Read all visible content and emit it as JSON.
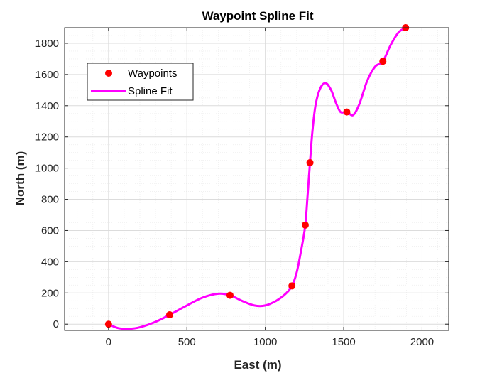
{
  "chart_data": {
    "type": "line",
    "title": "Waypoint Spline Fit",
    "xlabel": "East (m)",
    "ylabel": "North (m)",
    "xlim": [
      -280,
      2170
    ],
    "ylim": [
      -40,
      1900
    ],
    "xticks": [
      0,
      500,
      1000,
      1500,
      2000
    ],
    "yticks": [
      0,
      200,
      400,
      600,
      800,
      1000,
      1200,
      1400,
      1600,
      1800
    ],
    "grid": true,
    "minor_grid": true,
    "legend_location": "top-left",
    "series": [
      {
        "name": "Waypoints",
        "kind": "scatter",
        "color": "#ff0000",
        "x": [
          0,
          390,
          775,
          1170,
          1255,
          1285,
          1520,
          1750,
          1895
        ],
        "y": [
          0,
          60,
          185,
          245,
          635,
          1035,
          1360,
          1685,
          1900
        ]
      },
      {
        "name": "Spline Fit",
        "kind": "line",
        "color": "#ff00ff",
        "x": [
          0,
          60,
          130,
          200,
          300,
          390,
          500,
          600,
          700,
          775,
          850,
          930,
          1000,
          1070,
          1130,
          1170,
          1200,
          1230,
          1255,
          1270,
          1285,
          1300,
          1320,
          1350,
          1385,
          1420,
          1450,
          1480,
          1520,
          1560,
          1600,
          1650,
          1700,
          1750,
          1800,
          1850,
          1895
        ],
        "y": [
          0,
          -25,
          -30,
          -20,
          15,
          60,
          120,
          170,
          195,
          185,
          150,
          120,
          120,
          150,
          195,
          245,
          330,
          480,
          635,
          830,
          1035,
          1230,
          1400,
          1510,
          1545,
          1500,
          1420,
          1360,
          1360,
          1340,
          1410,
          1560,
          1650,
          1685,
          1790,
          1870,
          1900
        ]
      }
    ]
  }
}
